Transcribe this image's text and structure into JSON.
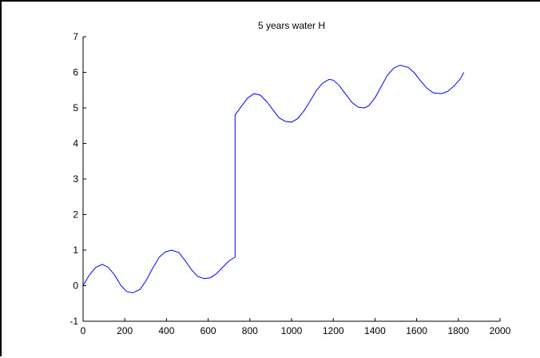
{
  "chart_data": {
    "type": "line",
    "title": "5 years water H",
    "xlabel": "",
    "ylabel": "",
    "xlim": [
      0,
      2000
    ],
    "ylim": [
      -1,
      7
    ],
    "xticks": [
      0,
      200,
      400,
      600,
      800,
      1000,
      1200,
      1400,
      1600,
      1800,
      2000
    ],
    "yticks": [
      -1,
      0,
      1,
      2,
      3,
      4,
      5,
      6,
      7
    ],
    "grid": false,
    "line_color": "#0000ff",
    "series": [
      {
        "x": [
          0,
          30,
          60,
          91,
          120,
          150,
          182,
          210,
          240,
          274,
          300,
          330,
          365,
          395,
          425,
          460,
          490,
          520,
          550,
          580,
          610,
          640,
          670,
          700,
          729,
          729,
          760,
          790,
          820,
          850,
          880,
          910,
          940,
          970,
          1000,
          1030,
          1060,
          1090,
          1120,
          1150,
          1180,
          1200,
          1230,
          1260,
          1290,
          1320,
          1350,
          1370,
          1400,
          1430,
          1460,
          1490,
          1520,
          1560,
          1590,
          1620,
          1650,
          1680,
          1720,
          1750,
          1780,
          1810,
          1826
        ],
        "y": [
          0.0,
          0.3,
          0.51,
          0.6,
          0.52,
          0.31,
          0.0,
          -0.17,
          -0.2,
          -0.1,
          0.12,
          0.45,
          0.8,
          0.95,
          1.0,
          0.93,
          0.7,
          0.45,
          0.26,
          0.2,
          0.22,
          0.34,
          0.52,
          0.7,
          0.8,
          4.8,
          5.05,
          5.28,
          5.4,
          5.36,
          5.18,
          4.95,
          4.72,
          4.62,
          4.6,
          4.7,
          4.92,
          5.2,
          5.5,
          5.7,
          5.8,
          5.78,
          5.62,
          5.38,
          5.15,
          5.02,
          5.0,
          5.06,
          5.28,
          5.6,
          5.92,
          6.12,
          6.2,
          6.14,
          5.98,
          5.75,
          5.55,
          5.42,
          5.4,
          5.47,
          5.62,
          5.82,
          6.0
        ]
      }
    ]
  }
}
